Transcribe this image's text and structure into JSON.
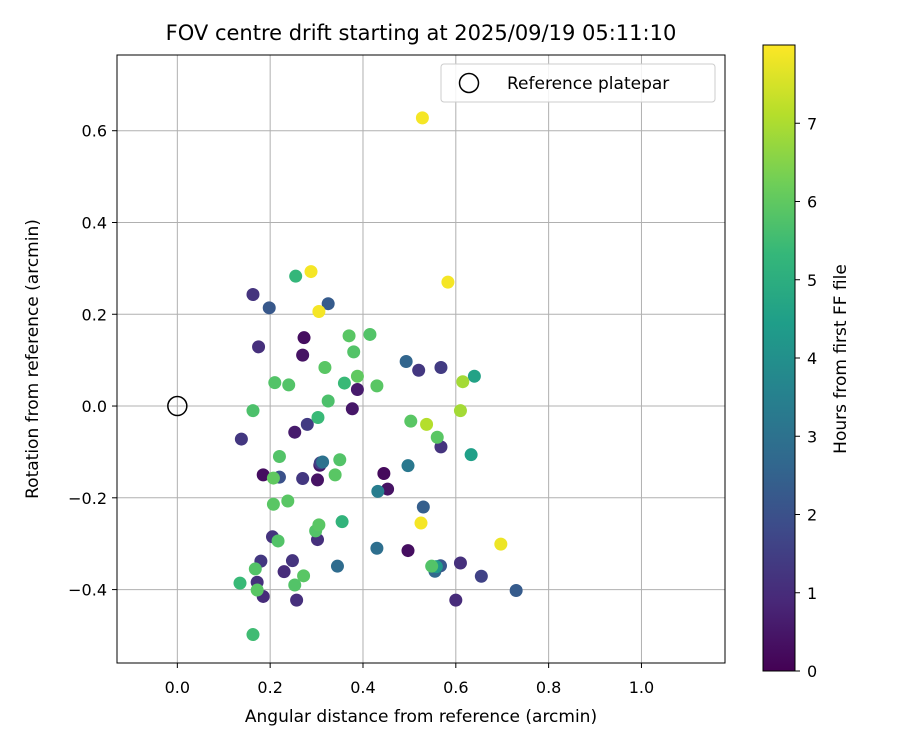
{
  "chart_data": {
    "type": "scatter",
    "title": "FOV centre drift starting at 2025/09/19 05:11:10",
    "xlabel": "Angular distance from reference (arcmin)",
    "ylabel": "Rotation from reference (arcmin)",
    "xlim": [
      -0.13,
      1.18
    ],
    "ylim": [
      -0.56,
      0.765
    ],
    "xticks": [
      0.0,
      0.2,
      0.4,
      0.6,
      0.8,
      1.0
    ],
    "xtick_labels": [
      "0.0",
      "0.2",
      "0.4",
      "0.6",
      "0.8",
      "1.0"
    ],
    "yticks": [
      -0.4,
      -0.2,
      0.0,
      0.2,
      0.4,
      0.6
    ],
    "ytick_labels": [
      "−0.4",
      "−0.2",
      "0.0",
      "0.2",
      "0.4",
      "0.6"
    ],
    "grid": true,
    "legend": {
      "position": "top-right",
      "entries": [
        "Reference platepar"
      ]
    },
    "reference_point": {
      "x": 0.0,
      "y": 0.0,
      "marker": "open-circle"
    },
    "colorbar": {
      "label": "Hours from first FF file",
      "range": [
        0,
        8
      ],
      "ticks": [
        0,
        1,
        2,
        3,
        4,
        5,
        6,
        7
      ],
      "tick_labels": [
        "0",
        "1",
        "2",
        "3",
        "4",
        "5",
        "6",
        "7"
      ],
      "colormap": [
        "#440154",
        "#482878",
        "#3e4989",
        "#31688e",
        "#26828e",
        "#1f9e89",
        "#35b779",
        "#6ece58",
        "#b5de2b",
        "#fde725"
      ]
    },
    "points": [
      {
        "x": 0.273,
        "y": 0.149,
        "h": 0.3
      },
      {
        "x": 0.27,
        "y": 0.111,
        "h": 0.4
      },
      {
        "x": 0.377,
        "y": -0.006,
        "h": 0.5
      },
      {
        "x": 0.388,
        "y": 0.036,
        "h": 0.6
      },
      {
        "x": 0.253,
        "y": -0.057,
        "h": 0.6
      },
      {
        "x": 0.307,
        "y": -0.129,
        "h": 0.5
      },
      {
        "x": 0.302,
        "y": -0.161,
        "h": 0.4
      },
      {
        "x": 0.185,
        "y": -0.15,
        "h": 0.3
      },
      {
        "x": 0.445,
        "y": -0.147,
        "h": 0.2
      },
      {
        "x": 0.453,
        "y": -0.181,
        "h": 0.4
      },
      {
        "x": 0.497,
        "y": -0.315,
        "h": 0.3
      },
      {
        "x": 0.163,
        "y": 0.243,
        "h": 1.2
      },
      {
        "x": 0.175,
        "y": 0.129,
        "h": 1.1
      },
      {
        "x": 0.138,
        "y": -0.072,
        "h": 1.3
      },
      {
        "x": 0.28,
        "y": -0.04,
        "h": 1.4
      },
      {
        "x": 0.27,
        "y": -0.158,
        "h": 1.3
      },
      {
        "x": 0.308,
        "y": -0.124,
        "h": 1.5
      },
      {
        "x": 0.205,
        "y": -0.285,
        "h": 1.2
      },
      {
        "x": 0.302,
        "y": -0.291,
        "h": 1.1
      },
      {
        "x": 0.18,
        "y": -0.338,
        "h": 1.3
      },
      {
        "x": 0.248,
        "y": -0.337,
        "h": 1.2
      },
      {
        "x": 0.23,
        "y": -0.361,
        "h": 1.0
      },
      {
        "x": 0.172,
        "y": -0.384,
        "h": 1.1
      },
      {
        "x": 0.185,
        "y": -0.415,
        "h": 1.0
      },
      {
        "x": 0.257,
        "y": -0.423,
        "h": 1.1
      },
      {
        "x": 0.52,
        "y": 0.078,
        "h": 1.3
      },
      {
        "x": 0.568,
        "y": 0.084,
        "h": 1.4
      },
      {
        "x": 0.568,
        "y": -0.089,
        "h": 1.2
      },
      {
        "x": 0.61,
        "y": -0.342,
        "h": 1.1
      },
      {
        "x": 0.6,
        "y": -0.423,
        "h": 1.0
      },
      {
        "x": 0.655,
        "y": -0.371,
        "h": 1.6
      },
      {
        "x": 0.198,
        "y": 0.214,
        "h": 2.2
      },
      {
        "x": 0.325,
        "y": 0.223,
        "h": 2.3
      },
      {
        "x": 0.22,
        "y": -0.155,
        "h": 2.0
      },
      {
        "x": 0.493,
        "y": 0.097,
        "h": 2.6
      },
      {
        "x": 0.53,
        "y": -0.22,
        "h": 2.4
      },
      {
        "x": 0.555,
        "y": -0.36,
        "h": 2.7
      },
      {
        "x": 0.567,
        "y": -0.348,
        "h": 2.2
      },
      {
        "x": 0.73,
        "y": -0.402,
        "h": 2.3
      },
      {
        "x": 0.43,
        "y": -0.31,
        "h": 2.9
      },
      {
        "x": 0.345,
        "y": -0.349,
        "h": 2.8
      },
      {
        "x": 0.313,
        "y": -0.122,
        "h": 3.0
      },
      {
        "x": 0.497,
        "y": -0.13,
        "h": 3.2
      },
      {
        "x": 0.432,
        "y": -0.186,
        "h": 3.4
      },
      {
        "x": 0.558,
        "y": -0.35,
        "h": 4.3
      },
      {
        "x": 0.64,
        "y": 0.065,
        "h": 4.6
      },
      {
        "x": 0.633,
        "y": -0.106,
        "h": 4.5
      },
      {
        "x": 0.255,
        "y": 0.283,
        "h": 5.3
      },
      {
        "x": 0.36,
        "y": 0.05,
        "h": 5.4
      },
      {
        "x": 0.303,
        "y": -0.025,
        "h": 5.4
      },
      {
        "x": 0.355,
        "y": -0.252,
        "h": 5.2
      },
      {
        "x": 0.135,
        "y": -0.386,
        "h": 5.4
      },
      {
        "x": 0.163,
        "y": -0.498,
        "h": 5.5
      },
      {
        "x": 0.163,
        "y": -0.01,
        "h": 5.7
      },
      {
        "x": 0.21,
        "y": 0.051,
        "h": 5.8
      },
      {
        "x": 0.24,
        "y": 0.046,
        "h": 5.8
      },
      {
        "x": 0.318,
        "y": 0.084,
        "h": 5.9
      },
      {
        "x": 0.325,
        "y": 0.011,
        "h": 5.7
      },
      {
        "x": 0.37,
        "y": 0.153,
        "h": 5.9
      },
      {
        "x": 0.38,
        "y": 0.118,
        "h": 5.8
      },
      {
        "x": 0.388,
        "y": 0.065,
        "h": 6.0
      },
      {
        "x": 0.415,
        "y": 0.156,
        "h": 5.8
      },
      {
        "x": 0.43,
        "y": 0.044,
        "h": 5.9
      },
      {
        "x": 0.22,
        "y": -0.11,
        "h": 5.8
      },
      {
        "x": 0.207,
        "y": -0.157,
        "h": 6.0
      },
      {
        "x": 0.207,
        "y": -0.214,
        "h": 5.9
      },
      {
        "x": 0.238,
        "y": -0.207,
        "h": 5.9
      },
      {
        "x": 0.217,
        "y": -0.294,
        "h": 5.8
      },
      {
        "x": 0.298,
        "y": -0.272,
        "h": 5.8
      },
      {
        "x": 0.305,
        "y": -0.259,
        "h": 5.9
      },
      {
        "x": 0.34,
        "y": -0.15,
        "h": 5.9
      },
      {
        "x": 0.35,
        "y": -0.117,
        "h": 5.8
      },
      {
        "x": 0.168,
        "y": -0.355,
        "h": 5.8
      },
      {
        "x": 0.172,
        "y": -0.401,
        "h": 5.9
      },
      {
        "x": 0.253,
        "y": -0.39,
        "h": 5.8
      },
      {
        "x": 0.272,
        "y": -0.37,
        "h": 5.9
      },
      {
        "x": 0.503,
        "y": -0.033,
        "h": 5.9
      },
      {
        "x": 0.56,
        "y": -0.068,
        "h": 5.9
      },
      {
        "x": 0.548,
        "y": -0.349,
        "h": 5.8
      },
      {
        "x": 0.615,
        "y": 0.053,
        "h": 6.9
      },
      {
        "x": 0.61,
        "y": -0.01,
        "h": 6.9
      },
      {
        "x": 0.537,
        "y": -0.04,
        "h": 7.1
      },
      {
        "x": 0.528,
        "y": 0.628,
        "h": 7.9
      },
      {
        "x": 0.288,
        "y": 0.293,
        "h": 7.9
      },
      {
        "x": 0.583,
        "y": 0.27,
        "h": 7.9
      },
      {
        "x": 0.305,
        "y": 0.206,
        "h": 7.9
      },
      {
        "x": 0.525,
        "y": -0.255,
        "h": 7.9
      },
      {
        "x": 0.697,
        "y": -0.301,
        "h": 7.8
      }
    ]
  }
}
